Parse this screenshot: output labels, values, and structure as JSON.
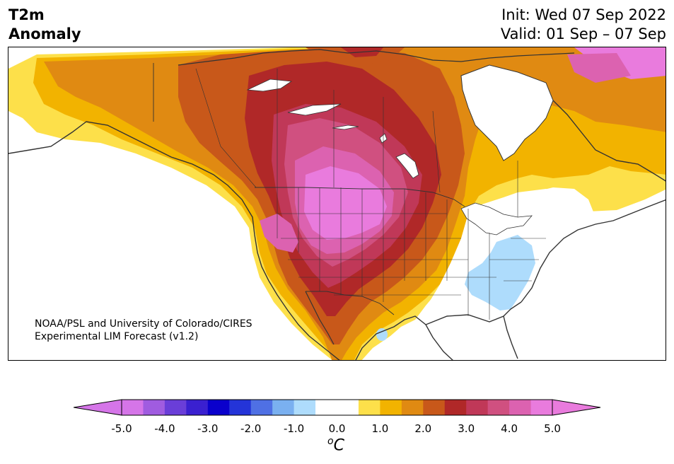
{
  "title": {
    "left_line1": "T2m",
    "left_line2": "Anomaly",
    "right_line1": "Init: Wed 07 Sep 2022",
    "right_line2": "Valid: 01 Sep – 07 Sep"
  },
  "credit": {
    "line1": "NOAA/PSL and University of Colorado/CIRES",
    "line2": "Experimental LIM Forecast (v1.2)"
  },
  "colorbar": {
    "ticks": [
      "-5.0",
      "-4.0",
      "-3.0",
      "-2.0",
      "-1.0",
      "0.0",
      "1.0",
      "2.0",
      "3.0",
      "4.0",
      "5.0"
    ],
    "unit_symbol": "o",
    "unit_letter": "C",
    "colors": [
      "#d575e8",
      "#a05ce0",
      "#6a3ed8",
      "#3a20d0",
      "#0a00cc",
      "#2434d8",
      "#4f70e4",
      "#7ab0f0",
      "#aedcfc",
      "#ffffff",
      "#ffffff",
      "#fde04a",
      "#f2b300",
      "#e08a12",
      "#c8581a",
      "#b02828",
      "#c03858",
      "#d05080",
      "#dc62b0",
      "#e97bdd"
    ]
  },
  "map": {
    "region": "North America",
    "anomaly_colors": {
      "plus_0_5": "#fde04a",
      "plus_1_0": "#f2b300",
      "plus_1_5": "#e08a12",
      "plus_2_0": "#c8581a",
      "plus_2_5": "#b02828",
      "plus_3_0": "#c03858",
      "plus_3_5": "#d05080",
      "plus_4_0": "#dc62b0",
      "plus_4_5": "#e97bdd",
      "minus_0_5": "#aedcfc"
    }
  }
}
